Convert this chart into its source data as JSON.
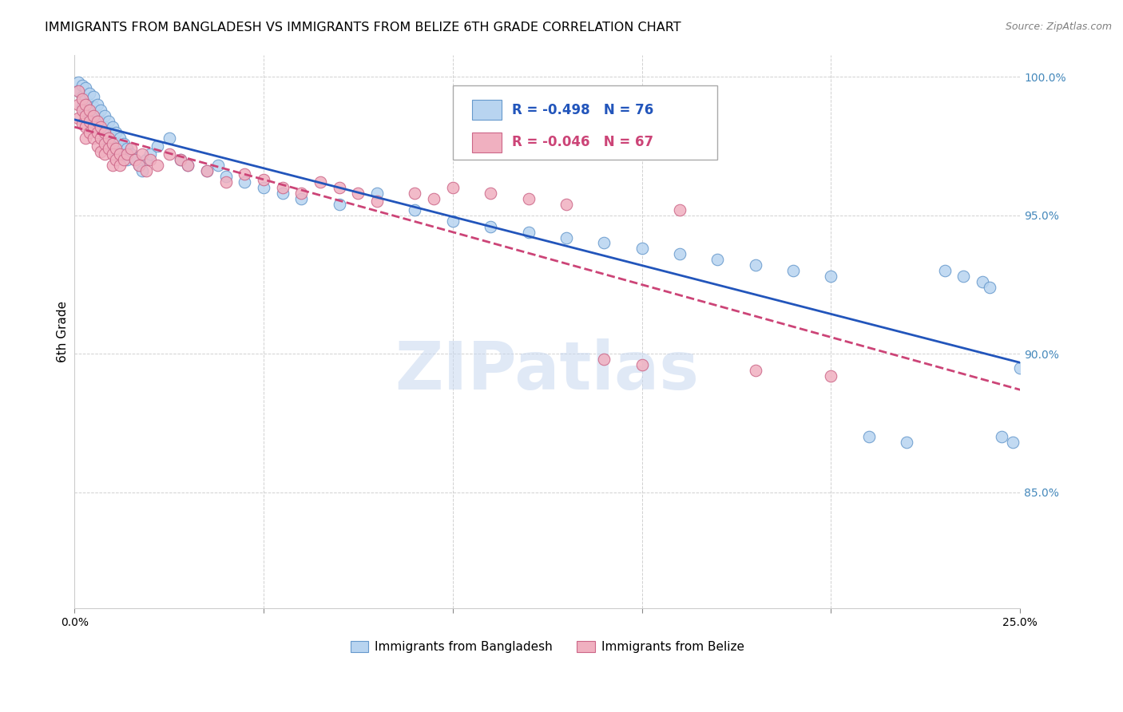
{
  "title": "IMMIGRANTS FROM BANGLADESH VS IMMIGRANTS FROM BELIZE 6TH GRADE CORRELATION CHART",
  "source": "Source: ZipAtlas.com",
  "ylabel": "6th Grade",
  "xlim": [
    0.0,
    0.25
  ],
  "ylim": [
    0.808,
    1.008
  ],
  "xticks": [
    0.0,
    0.05,
    0.1,
    0.15,
    0.2,
    0.25
  ],
  "yticks": [
    0.85,
    0.9,
    0.95,
    1.0
  ],
  "xticklabels": [
    "0.0%",
    "",
    "",
    "",
    "",
    "25.0%"
  ],
  "yticklabels": [
    "85.0%",
    "90.0%",
    "95.0%",
    "100.0%"
  ],
  "bangladesh": {
    "label": "Immigrants from Bangladesh",
    "R": -0.498,
    "N": 76,
    "face_color": "#b8d4f0",
    "edge_color": "#6699cc",
    "trend_color": "#2255bb",
    "trend_style": "-",
    "x": [
      0.001,
      0.001,
      0.002,
      0.002,
      0.002,
      0.003,
      0.003,
      0.003,
      0.004,
      0.004,
      0.004,
      0.005,
      0.005,
      0.005,
      0.006,
      0.006,
      0.006,
      0.007,
      0.007,
      0.007,
      0.008,
      0.008,
      0.008,
      0.009,
      0.009,
      0.01,
      0.01,
      0.01,
      0.011,
      0.011,
      0.012,
      0.012,
      0.013,
      0.013,
      0.014,
      0.014,
      0.015,
      0.016,
      0.017,
      0.018,
      0.019,
      0.02,
      0.022,
      0.025,
      0.028,
      0.03,
      0.035,
      0.038,
      0.04,
      0.045,
      0.05,
      0.055,
      0.06,
      0.07,
      0.08,
      0.09,
      0.1,
      0.11,
      0.12,
      0.13,
      0.14,
      0.15,
      0.16,
      0.17,
      0.18,
      0.19,
      0.2,
      0.21,
      0.22,
      0.23,
      0.235,
      0.24,
      0.242,
      0.245,
      0.248,
      0.25
    ],
    "y": [
      0.998,
      0.995,
      0.997,
      0.993,
      0.989,
      0.996,
      0.992,
      0.988,
      0.994,
      0.99,
      0.986,
      0.993,
      0.989,
      0.985,
      0.99,
      0.986,
      0.982,
      0.988,
      0.984,
      0.98,
      0.986,
      0.982,
      0.978,
      0.984,
      0.98,
      0.982,
      0.978,
      0.974,
      0.98,
      0.976,
      0.978,
      0.974,
      0.976,
      0.972,
      0.974,
      0.97,
      0.972,
      0.97,
      0.968,
      0.966,
      0.97,
      0.972,
      0.975,
      0.978,
      0.97,
      0.968,
      0.966,
      0.968,
      0.964,
      0.962,
      0.96,
      0.958,
      0.956,
      0.954,
      0.958,
      0.952,
      0.948,
      0.946,
      0.944,
      0.942,
      0.94,
      0.938,
      0.936,
      0.934,
      0.932,
      0.93,
      0.928,
      0.87,
      0.868,
      0.93,
      0.928,
      0.926,
      0.924,
      0.87,
      0.868,
      0.895
    ]
  },
  "belize": {
    "label": "Immigrants from Belize",
    "R": -0.046,
    "N": 67,
    "face_color": "#f0b0c0",
    "edge_color": "#cc6688",
    "trend_color": "#cc4477",
    "trend_style": "--",
    "x": [
      0.001,
      0.001,
      0.001,
      0.002,
      0.002,
      0.002,
      0.003,
      0.003,
      0.003,
      0.003,
      0.004,
      0.004,
      0.004,
      0.005,
      0.005,
      0.005,
      0.006,
      0.006,
      0.006,
      0.007,
      0.007,
      0.007,
      0.008,
      0.008,
      0.008,
      0.009,
      0.009,
      0.01,
      0.01,
      0.01,
      0.011,
      0.011,
      0.012,
      0.012,
      0.013,
      0.014,
      0.015,
      0.016,
      0.017,
      0.018,
      0.019,
      0.02,
      0.022,
      0.025,
      0.028,
      0.03,
      0.035,
      0.04,
      0.045,
      0.05,
      0.055,
      0.06,
      0.065,
      0.07,
      0.075,
      0.08,
      0.09,
      0.095,
      0.1,
      0.11,
      0.12,
      0.13,
      0.14,
      0.15,
      0.16,
      0.18,
      0.2
    ],
    "y": [
      0.995,
      0.99,
      0.985,
      0.992,
      0.988,
      0.983,
      0.99,
      0.986,
      0.982,
      0.978,
      0.988,
      0.984,
      0.98,
      0.986,
      0.982,
      0.978,
      0.984,
      0.98,
      0.975,
      0.982,
      0.978,
      0.973,
      0.98,
      0.976,
      0.972,
      0.978,
      0.974,
      0.976,
      0.972,
      0.968,
      0.974,
      0.97,
      0.972,
      0.968,
      0.97,
      0.972,
      0.974,
      0.97,
      0.968,
      0.972,
      0.966,
      0.97,
      0.968,
      0.972,
      0.97,
      0.968,
      0.966,
      0.962,
      0.965,
      0.963,
      0.96,
      0.958,
      0.962,
      0.96,
      0.958,
      0.955,
      0.958,
      0.956,
      0.96,
      0.958,
      0.956,
      0.954,
      0.898,
      0.896,
      0.952,
      0.894,
      0.892
    ]
  },
  "watermark_text": "ZIPatlas",
  "watermark_color": "#c8d8f0",
  "title_fontsize": 11.5,
  "source_fontsize": 9,
  "tick_fontsize": 10,
  "ylabel_fontsize": 11
}
